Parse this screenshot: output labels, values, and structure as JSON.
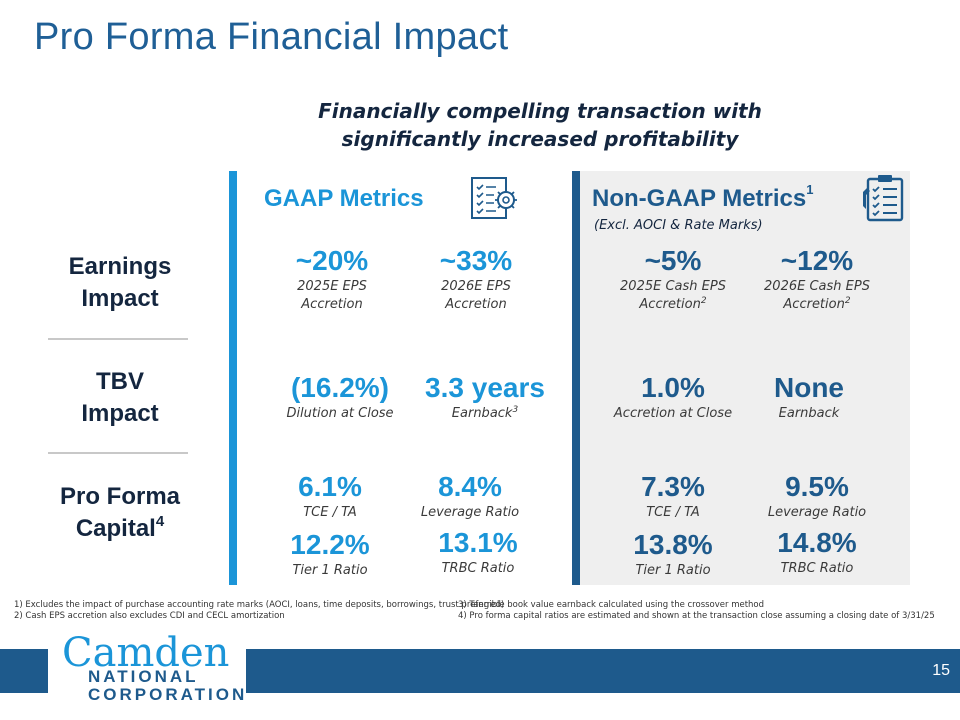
{
  "title": "Pro Forma Financial Impact",
  "subtitle": {
    "line1": "Financially compelling transaction with",
    "line2": "significantly increased profitability"
  },
  "gaap": {
    "heading": "GAAP Metrics",
    "icon": "checklist-gear-icon"
  },
  "non_gaap": {
    "heading": "Non-GAAP Metrics",
    "heading_sup": "1",
    "sub": "(Excl. AOCI & Rate Marks)",
    "icon": "clipboard-checklist-icon"
  },
  "rows": {
    "earnings": {
      "label_l1": "Earnings",
      "label_l2": "Impact"
    },
    "tbv": {
      "label_l1": "TBV",
      "label_l2": "Impact"
    },
    "capital": {
      "label_l1": "Pro Forma",
      "label_l2": "Capital",
      "label_sup": "4"
    }
  },
  "earnings": {
    "g1": {
      "value": "~20%",
      "cap1": "2025E EPS",
      "cap2": "Accretion"
    },
    "g2": {
      "value": "~33%",
      "cap1": "2026E EPS",
      "cap2": "Accretion"
    },
    "n1": {
      "value": "~5%",
      "cap1": "2025E Cash EPS",
      "cap2": "Accretion",
      "sup": "2"
    },
    "n2": {
      "value": "~12%",
      "cap1": "2026E Cash EPS",
      "cap2": "Accretion",
      "sup": "2"
    }
  },
  "tbv": {
    "g1": {
      "value": "(16.2%)",
      "cap": "Dilution at Close"
    },
    "g2": {
      "value": "3.3 years",
      "cap": "Earnback",
      "sup": "3"
    },
    "n1": {
      "value": "1.0%",
      "cap": "Accretion at Close"
    },
    "n2": {
      "value": "None",
      "cap": "Earnback"
    }
  },
  "capital": {
    "g1": {
      "value": "6.1%",
      "cap": "TCE / TA"
    },
    "g2": {
      "value": "8.4%",
      "cap": "Leverage Ratio"
    },
    "g3": {
      "value": "12.2%",
      "cap": "Tier 1 Ratio"
    },
    "g4": {
      "value": "13.1%",
      "cap": "TRBC Ratio"
    },
    "n1": {
      "value": "7.3%",
      "cap": "TCE / TA"
    },
    "n2": {
      "value": "9.5%",
      "cap": "Leverage Ratio"
    },
    "n3": {
      "value": "13.8%",
      "cap": "Tier 1 Ratio"
    },
    "n4": {
      "value": "14.8%",
      "cap": "TRBC Ratio"
    }
  },
  "footnotes": {
    "f1": "1) Excludes the impact of purchase accounting rate marks (AOCI, loans, time deposits, borrowings, trust preferred)",
    "f2": "2) Cash EPS accretion also excludes CDI and CECL amortization",
    "f3": "3) Tangible book value earnback calculated using the crossover method",
    "f4": "4) Pro forma capital ratios are estimated and shown at the transaction close assuming a closing date of 3/31/25"
  },
  "logo": {
    "name": "Camden",
    "sub": "NATIONAL CORPORATION"
  },
  "page_number": "15",
  "colors": {
    "accent": "#1b95d8",
    "brand": "#1e5a8c",
    "title": "#1f5f96",
    "dark": "#14263f",
    "panel": "#efefef"
  }
}
